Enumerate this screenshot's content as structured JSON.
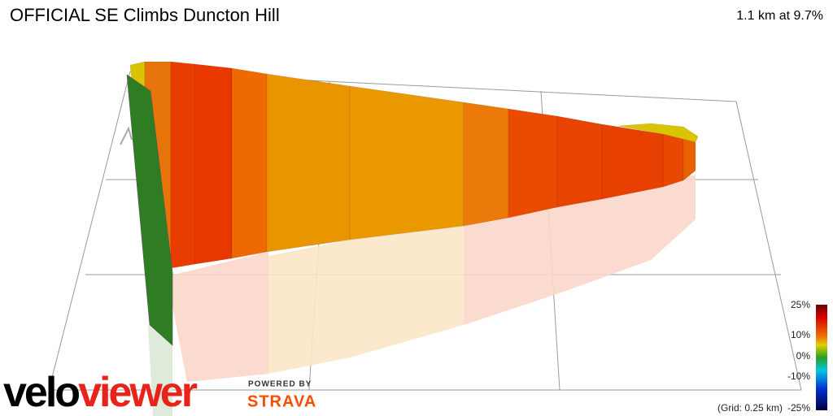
{
  "header": {
    "title": "OFFICIAL SE Climbs Duncton Hill",
    "summary": "1.1 km at 9.7%"
  },
  "legend": {
    "labels": [
      "25%",
      "10%",
      "0%",
      "-10%",
      "-25%"
    ],
    "grid_note": "(Grid: 0.25 km)"
  },
  "branding": {
    "logo_part1": "velo",
    "logo_part2": "viewer",
    "powered_by": "POWERED BY",
    "partner": "STRAVA"
  }
}
